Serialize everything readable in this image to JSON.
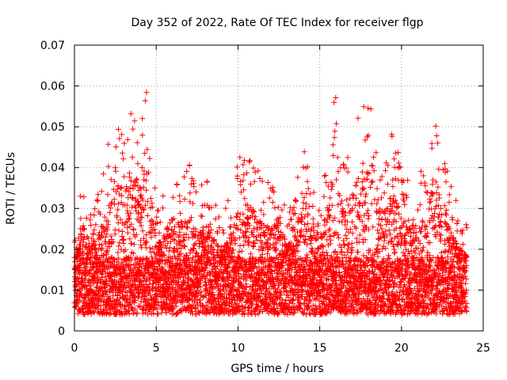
{
  "chart_data": {
    "type": "scatter",
    "title": "Day 352 of 2022, Rate Of TEC Index for receiver flgp",
    "xlabel": "GPS time / hours",
    "ylabel": "ROTI / TECUs",
    "xlim": [
      0,
      25
    ],
    "ylim": [
      0,
      0.07
    ],
    "x_ticks": [
      "0",
      "5",
      "10",
      "15",
      "20",
      "25"
    ],
    "y_ticks": [
      "0",
      "0.01",
      "0.02",
      "0.03",
      "0.04",
      "0.05",
      "0.06",
      "0.07"
    ],
    "grid": true,
    "marker": "+",
    "marker_color": "#ff0000",
    "series": [
      {
        "name": "ROTI",
        "sampling": {
          "x_start": 0,
          "x_end": 24,
          "x_step": 0.0083,
          "baseline_min": 0.004,
          "baseline_max": 0.018,
          "seed": 352
        },
        "envelope": [
          [
            0.0,
            0.022
          ],
          [
            0.5,
            0.038
          ],
          [
            1.0,
            0.03
          ],
          [
            1.5,
            0.035
          ],
          [
            2.0,
            0.045
          ],
          [
            2.5,
            0.053
          ],
          [
            3.0,
            0.05
          ],
          [
            3.5,
            0.058
          ],
          [
            4.0,
            0.05
          ],
          [
            4.5,
            0.064
          ],
          [
            5.0,
            0.03
          ],
          [
            5.5,
            0.034
          ],
          [
            6.0,
            0.04
          ],
          [
            6.5,
            0.038
          ],
          [
            7.0,
            0.043
          ],
          [
            7.5,
            0.034
          ],
          [
            8.0,
            0.038
          ],
          [
            8.5,
            0.032
          ],
          [
            9.0,
            0.028
          ],
          [
            9.5,
            0.033
          ],
          [
            10.0,
            0.042
          ],
          [
            10.5,
            0.045
          ],
          [
            11.0,
            0.042
          ],
          [
            11.5,
            0.038
          ],
          [
            12.0,
            0.036
          ],
          [
            12.5,
            0.04
          ],
          [
            13.0,
            0.03
          ],
          [
            13.5,
            0.034
          ],
          [
            14.0,
            0.046
          ],
          [
            14.5,
            0.038
          ],
          [
            15.0,
            0.033
          ],
          [
            15.5,
            0.044
          ],
          [
            16.0,
            0.062
          ],
          [
            16.5,
            0.04
          ],
          [
            17.0,
            0.05
          ],
          [
            17.5,
            0.055
          ],
          [
            18.0,
            0.058
          ],
          [
            18.5,
            0.047
          ],
          [
            19.0,
            0.042
          ],
          [
            19.5,
            0.05
          ],
          [
            20.0,
            0.04
          ],
          [
            20.5,
            0.036
          ],
          [
            21.0,
            0.04
          ],
          [
            21.5,
            0.038
          ],
          [
            22.0,
            0.058
          ],
          [
            22.5,
            0.045
          ],
          [
            23.0,
            0.036
          ],
          [
            23.5,
            0.03
          ],
          [
            24.0,
            0.026
          ]
        ]
      }
    ]
  }
}
